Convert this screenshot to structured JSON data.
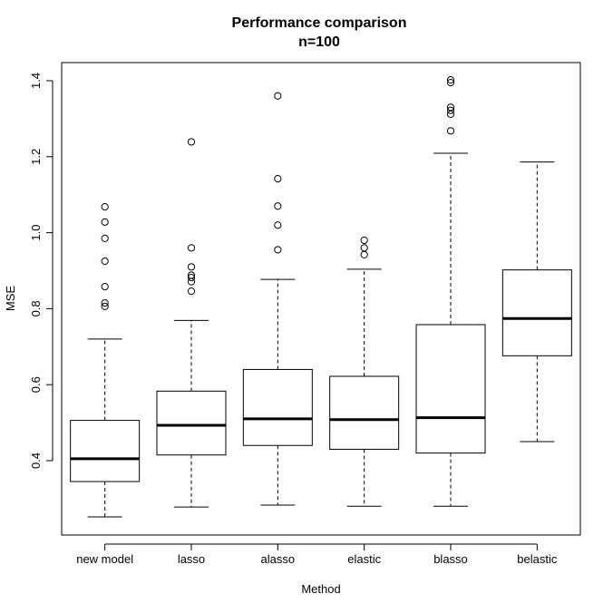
{
  "chart_data": {
    "type": "boxplot",
    "title": "Performance comparison",
    "subtitle": "n=100",
    "xlabel": "Method",
    "ylabel": "MSE",
    "ylim": [
      0.25,
      1.45
    ],
    "yticks": [
      0.4,
      0.6,
      0.8,
      1.0,
      1.2,
      1.4
    ],
    "ytick_labels": [
      "0.4",
      "0.6",
      "0.8",
      "1.0",
      "1.2",
      "1.4"
    ],
    "grid": false,
    "categories": [
      "new model",
      "lasso",
      "alasso",
      "elastic",
      "blasso",
      "belastic"
    ],
    "boxes": [
      {
        "name": "new model",
        "whisker_low": 0.252,
        "q1": 0.345,
        "median": 0.405,
        "q3": 0.506,
        "whisker_high": 0.72,
        "outliers": [
          0.806,
          0.815,
          0.858,
          0.925,
          0.985,
          1.028,
          1.068
        ]
      },
      {
        "name": "lasso",
        "whisker_low": 0.278,
        "q1": 0.415,
        "median": 0.493,
        "q3": 0.583,
        "whisker_high": 0.769,
        "outliers": [
          0.846,
          0.871,
          0.882,
          0.888,
          0.91,
          0.96,
          1.239
        ]
      },
      {
        "name": "alasso",
        "whisker_low": 0.283,
        "q1": 0.44,
        "median": 0.51,
        "q3": 0.64,
        "whisker_high": 0.877,
        "outliers": [
          0.955,
          1.02,
          1.07,
          1.142,
          1.36
        ]
      },
      {
        "name": "elastic",
        "whisker_low": 0.28,
        "q1": 0.43,
        "median": 0.508,
        "q3": 0.622,
        "whisker_high": 0.904,
        "outliers": [
          0.942,
          0.96,
          0.98
        ]
      },
      {
        "name": "blasso",
        "whisker_low": 0.28,
        "q1": 0.42,
        "median": 0.513,
        "q3": 0.758,
        "whisker_high": 1.209,
        "outliers": [
          1.268,
          1.312,
          1.322,
          1.33,
          1.395,
          1.402
        ]
      },
      {
        "name": "belastic",
        "whisker_low": 0.45,
        "q1": 0.676,
        "median": 0.774,
        "q3": 0.902,
        "whisker_high": 1.186,
        "outliers": []
      }
    ]
  }
}
